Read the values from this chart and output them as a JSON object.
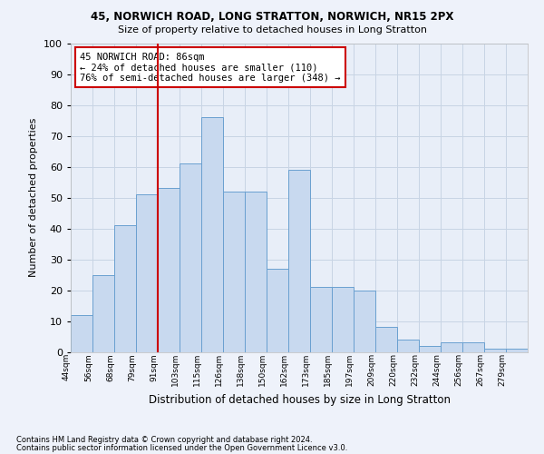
{
  "title_line1": "45, NORWICH ROAD, LONG STRATTON, NORWICH, NR15 2PX",
  "title_line2": "Size of property relative to detached houses in Long Stratton",
  "xlabel": "Distribution of detached houses by size in Long Stratton",
  "ylabel": "Number of detached properties",
  "categories": [
    "44sqm",
    "56sqm",
    "68sqm",
    "79sqm",
    "91sqm",
    "103sqm",
    "115sqm",
    "126sqm",
    "138sqm",
    "150sqm",
    "162sqm",
    "173sqm",
    "185sqm",
    "197sqm",
    "209sqm",
    "220sqm",
    "232sqm",
    "244sqm",
    "256sqm",
    "267sqm",
    "279sqm"
  ],
  "values": [
    12,
    25,
    41,
    51,
    53,
    61,
    76,
    52,
    52,
    27,
    59,
    21,
    21,
    20,
    8,
    4,
    2,
    3,
    3,
    1,
    1
  ],
  "bar_color": "#c8d9ef",
  "bar_edge_color": "#6aa0d0",
  "grid_color": "#c8d4e4",
  "background_color": "#e8eef8",
  "fig_background": "#eef2fa",
  "vline_color": "#cc0000",
  "annotation_text": "45 NORWICH ROAD: 86sqm\n← 24% of detached houses are smaller (110)\n76% of semi-detached houses are larger (348) →",
  "annotation_box_color": "#ffffff",
  "annotation_box_edge": "#cc0000",
  "ylim": [
    0,
    100
  ],
  "footnote1": "Contains HM Land Registry data © Crown copyright and database right 2024.",
  "footnote2": "Contains public sector information licensed under the Open Government Licence v3.0."
}
